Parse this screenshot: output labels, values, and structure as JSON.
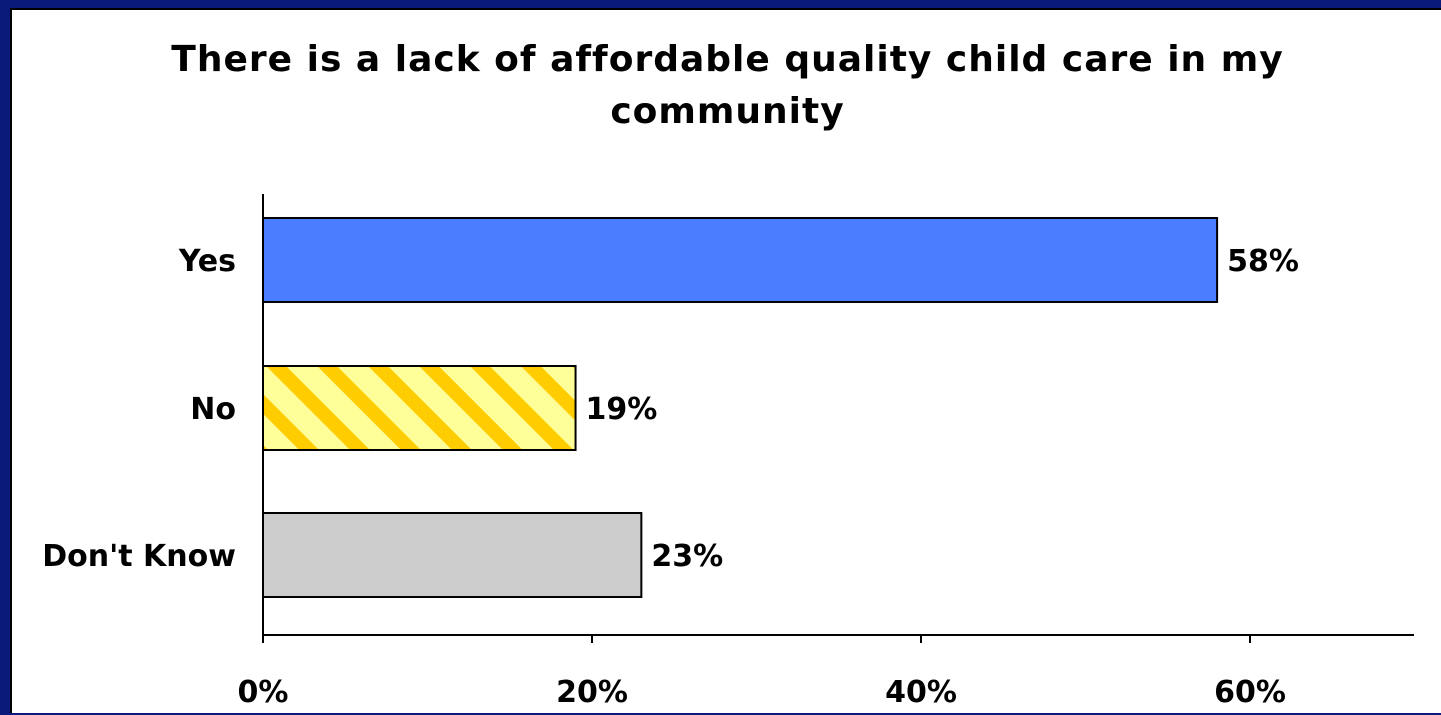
{
  "chart_data": {
    "type": "bar",
    "orientation": "horizontal",
    "title": "There is a lack of affordable quality child care in my community",
    "title_lines": [
      "There is a lack of affordable quality child care in my",
      "community"
    ],
    "categories": [
      "Yes",
      "No",
      "Don't Know"
    ],
    "values": [
      58,
      19,
      23
    ],
    "data_labels": [
      "58%",
      "19%",
      "23%"
    ],
    "xlim": [
      0,
      70
    ],
    "x_ticks": [
      0,
      20,
      40,
      60
    ],
    "x_tick_labels": [
      "0%",
      "20%",
      "40%",
      "60%"
    ],
    "grid": false,
    "legend": "none",
    "xlabel": "",
    "ylabel": "",
    "bar_styles": [
      {
        "fill": "#4a7dff",
        "pattern": "solid"
      },
      {
        "fill": "#ffff99",
        "pattern": "diagonal-stripes",
        "stripe_color": "#ffcc00"
      },
      {
        "fill": "#cccccc",
        "pattern": "solid"
      }
    ]
  }
}
